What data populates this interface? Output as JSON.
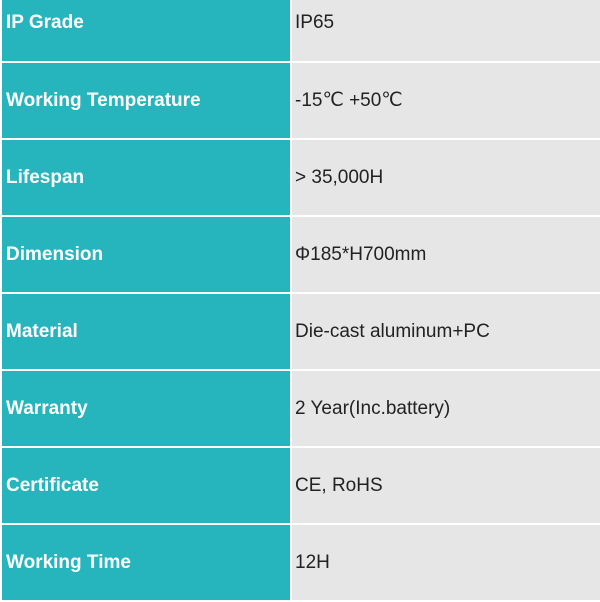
{
  "colors": {
    "label_bg": "#27b5bd",
    "value_bg": "#e6e6e6"
  },
  "specs": [
    {
      "label": "IP Grade",
      "value": "IP65"
    },
    {
      "label": "Working Temperature",
      "value": "-15℃  +50℃"
    },
    {
      "label": "Lifespan",
      "value": "> 35,000H"
    },
    {
      "label": "Dimension",
      "value": "Φ185*H700mm"
    },
    {
      "label": "Material",
      "value": "Die-cast aluminum+PC"
    },
    {
      "label": "Warranty",
      "value": "2 Year(Inc.battery)"
    },
    {
      "label": "Certificate",
      "value": "CE, RoHS"
    },
    {
      "label": "Working Time",
      "value": "12H"
    }
  ]
}
